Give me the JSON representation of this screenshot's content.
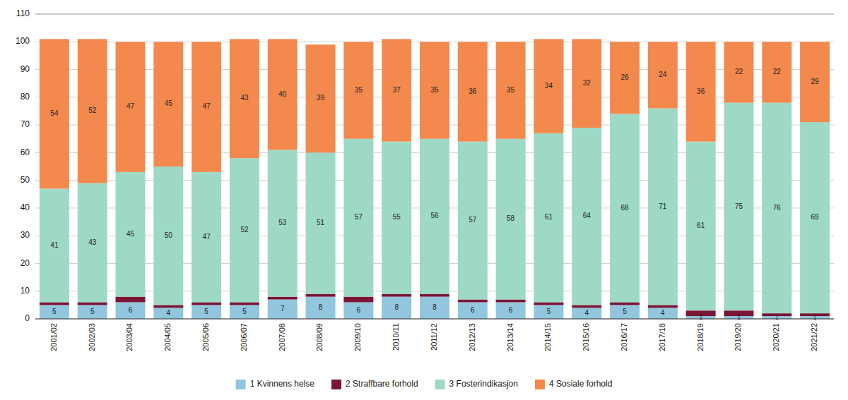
{
  "chart_data": {
    "type": "bar",
    "stacked": true,
    "categories": [
      "2001/02",
      "2002/03",
      "2003/04",
      "2004/05",
      "2005/06",
      "2006/07",
      "2007/08",
      "2008/09",
      "2009/10",
      "2010/11",
      "2011/12",
      "2012/13",
      "2013/14",
      "2014/15",
      "2015/16",
      "2016/17",
      "2017/18",
      "2018/19",
      "2019/20",
      "2020/21",
      "2021/22"
    ],
    "series": [
      {
        "name": "1 Kvinnens helse",
        "color": "#92c5de",
        "data_labels": true,
        "values": [
          5,
          5,
          6,
          4,
          5,
          5,
          7,
          8,
          6,
          8,
          8,
          6,
          6,
          5,
          4,
          5,
          4,
          1,
          1,
          1,
          1
        ]
      },
      {
        "name": "2 Straffbare forhold",
        "color": "#7b1535",
        "data_labels": false,
        "values": [
          1,
          1,
          2,
          1,
          1,
          1,
          1,
          1,
          2,
          1,
          1,
          1,
          1,
          1,
          1,
          1,
          1,
          2,
          2,
          1,
          1
        ]
      },
      {
        "name": "3 Fosterindikasjon",
        "color": "#9dd9c5",
        "data_labels": true,
        "values": [
          41,
          43,
          45,
          50,
          47,
          52,
          53,
          51,
          57,
          55,
          56,
          57,
          58,
          61,
          64,
          68,
          71,
          61,
          75,
          76,
          69
        ]
      },
      {
        "name": "4 Sosiale forhold",
        "color": "#f4894e",
        "data_labels": true,
        "values": [
          54,
          52,
          47,
          45,
          47,
          43,
          40,
          39,
          35,
          37,
          35,
          36,
          35,
          34,
          32,
          26,
          24,
          36,
          22,
          22,
          29
        ]
      }
    ],
    "ylim": [
      0,
      110
    ],
    "yticks": [
      0,
      10,
      20,
      30,
      40,
      50,
      60,
      70,
      80,
      90,
      100,
      110
    ],
    "grid": true,
    "legend": "bottom"
  }
}
